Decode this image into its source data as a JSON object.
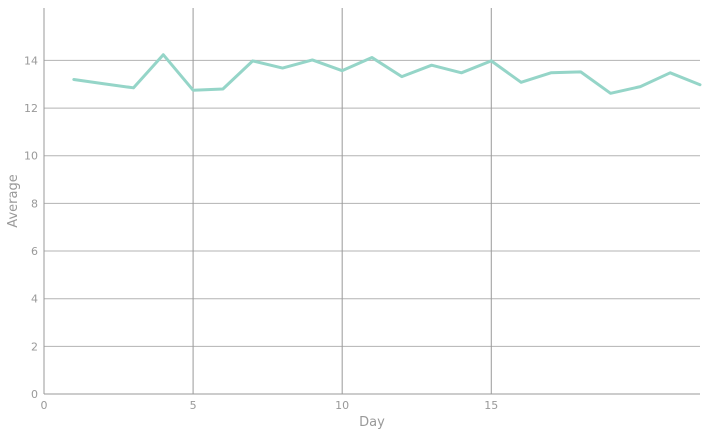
{
  "chart_data": {
    "type": "line",
    "title": "",
    "xlabel": "Day",
    "ylabel": "Average",
    "xlim": [
      0,
      22
    ],
    "ylim": [
      0,
      16.2
    ],
    "x_ticks": [
      0,
      5,
      10,
      15
    ],
    "y_ticks": [
      0,
      2,
      4,
      6,
      8,
      10,
      12,
      14
    ],
    "grid": {
      "horizontal": true,
      "vertical_at_x_ticks": true
    },
    "legend": "none",
    "colors": {
      "line": "#95d5c8",
      "grid": "#b3b3b3",
      "vgrid": "#999999",
      "axis": "#999999",
      "text": "#999999"
    },
    "series": [
      {
        "x": [
          1,
          2,
          3,
          4,
          5,
          6,
          7,
          8,
          9,
          10,
          11,
          12,
          13,
          14,
          15,
          16,
          17,
          18,
          19,
          20,
          21,
          22
        ],
        "values": [
          13.2,
          13.02,
          12.85,
          14.24,
          12.75,
          12.8,
          13.98,
          13.68,
          14.02,
          13.57,
          14.12,
          13.32,
          13.8,
          13.48,
          13.98,
          13.08,
          13.48,
          13.52,
          12.62,
          12.9,
          13.48,
          12.98
        ]
      }
    ]
  }
}
